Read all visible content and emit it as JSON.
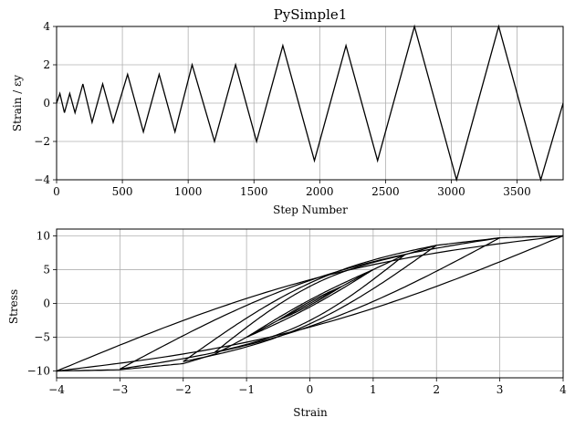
{
  "chart_data": [
    {
      "type": "line",
      "title": "PySimple1",
      "xlabel": "Step Number",
      "ylabel": "Strain / εy",
      "xlim": [
        0,
        3850
      ],
      "ylim": [
        -4,
        4
      ],
      "xticks": [
        0,
        500,
        1000,
        1500,
        2000,
        2500,
        3000,
        3500
      ],
      "yticks": [
        -4,
        -2,
        0,
        2,
        4
      ],
      "grid": true,
      "colors": {
        "line": "#000000",
        "grid": "#b0b0b0"
      },
      "series": [
        {
          "x": [
            0,
            25,
            60,
            100,
            140,
            200,
            270,
            350,
            430,
            540,
            660,
            780,
            900,
            1030,
            1200,
            1360,
            1520,
            1720,
            1960,
            2200,
            2440,
            2720,
            3040,
            3360,
            3680,
            3850
          ],
          "y": [
            0,
            0.5,
            -0.5,
            0.5,
            -0.5,
            1,
            -1,
            1,
            -1,
            1.5,
            -1.5,
            1.5,
            -1.5,
            2,
            -2,
            2,
            -2,
            3,
            -3,
            3,
            -3,
            4,
            -4,
            4,
            -4,
            0
          ]
        }
      ]
    },
    {
      "type": "line",
      "title": "",
      "xlabel": "Strain",
      "ylabel": "Stress",
      "xlim": [
        -4,
        4
      ],
      "ylim": [
        -11,
        11
      ],
      "xticks": [
        -4,
        -3,
        -2,
        -1,
        0,
        1,
        2,
        3,
        4
      ],
      "yticks": [
        -10,
        -5,
        0,
        5,
        10
      ],
      "grid": true,
      "colors": {
        "line": "#000000",
        "grid": "#b0b0b0"
      },
      "amplitudes": [
        0.5,
        1,
        1.5,
        2,
        3,
        4
      ],
      "series": [
        {
          "x": [
            -4,
            -3,
            -2,
            -1.5,
            -1,
            0,
            1,
            1.5,
            2,
            3,
            4
          ],
          "y": [
            -10,
            -9.8,
            -8.9,
            -7.5,
            -5,
            0,
            5,
            7.2,
            8.6,
            9.7,
            10
          ]
        }
      ]
    }
  ]
}
